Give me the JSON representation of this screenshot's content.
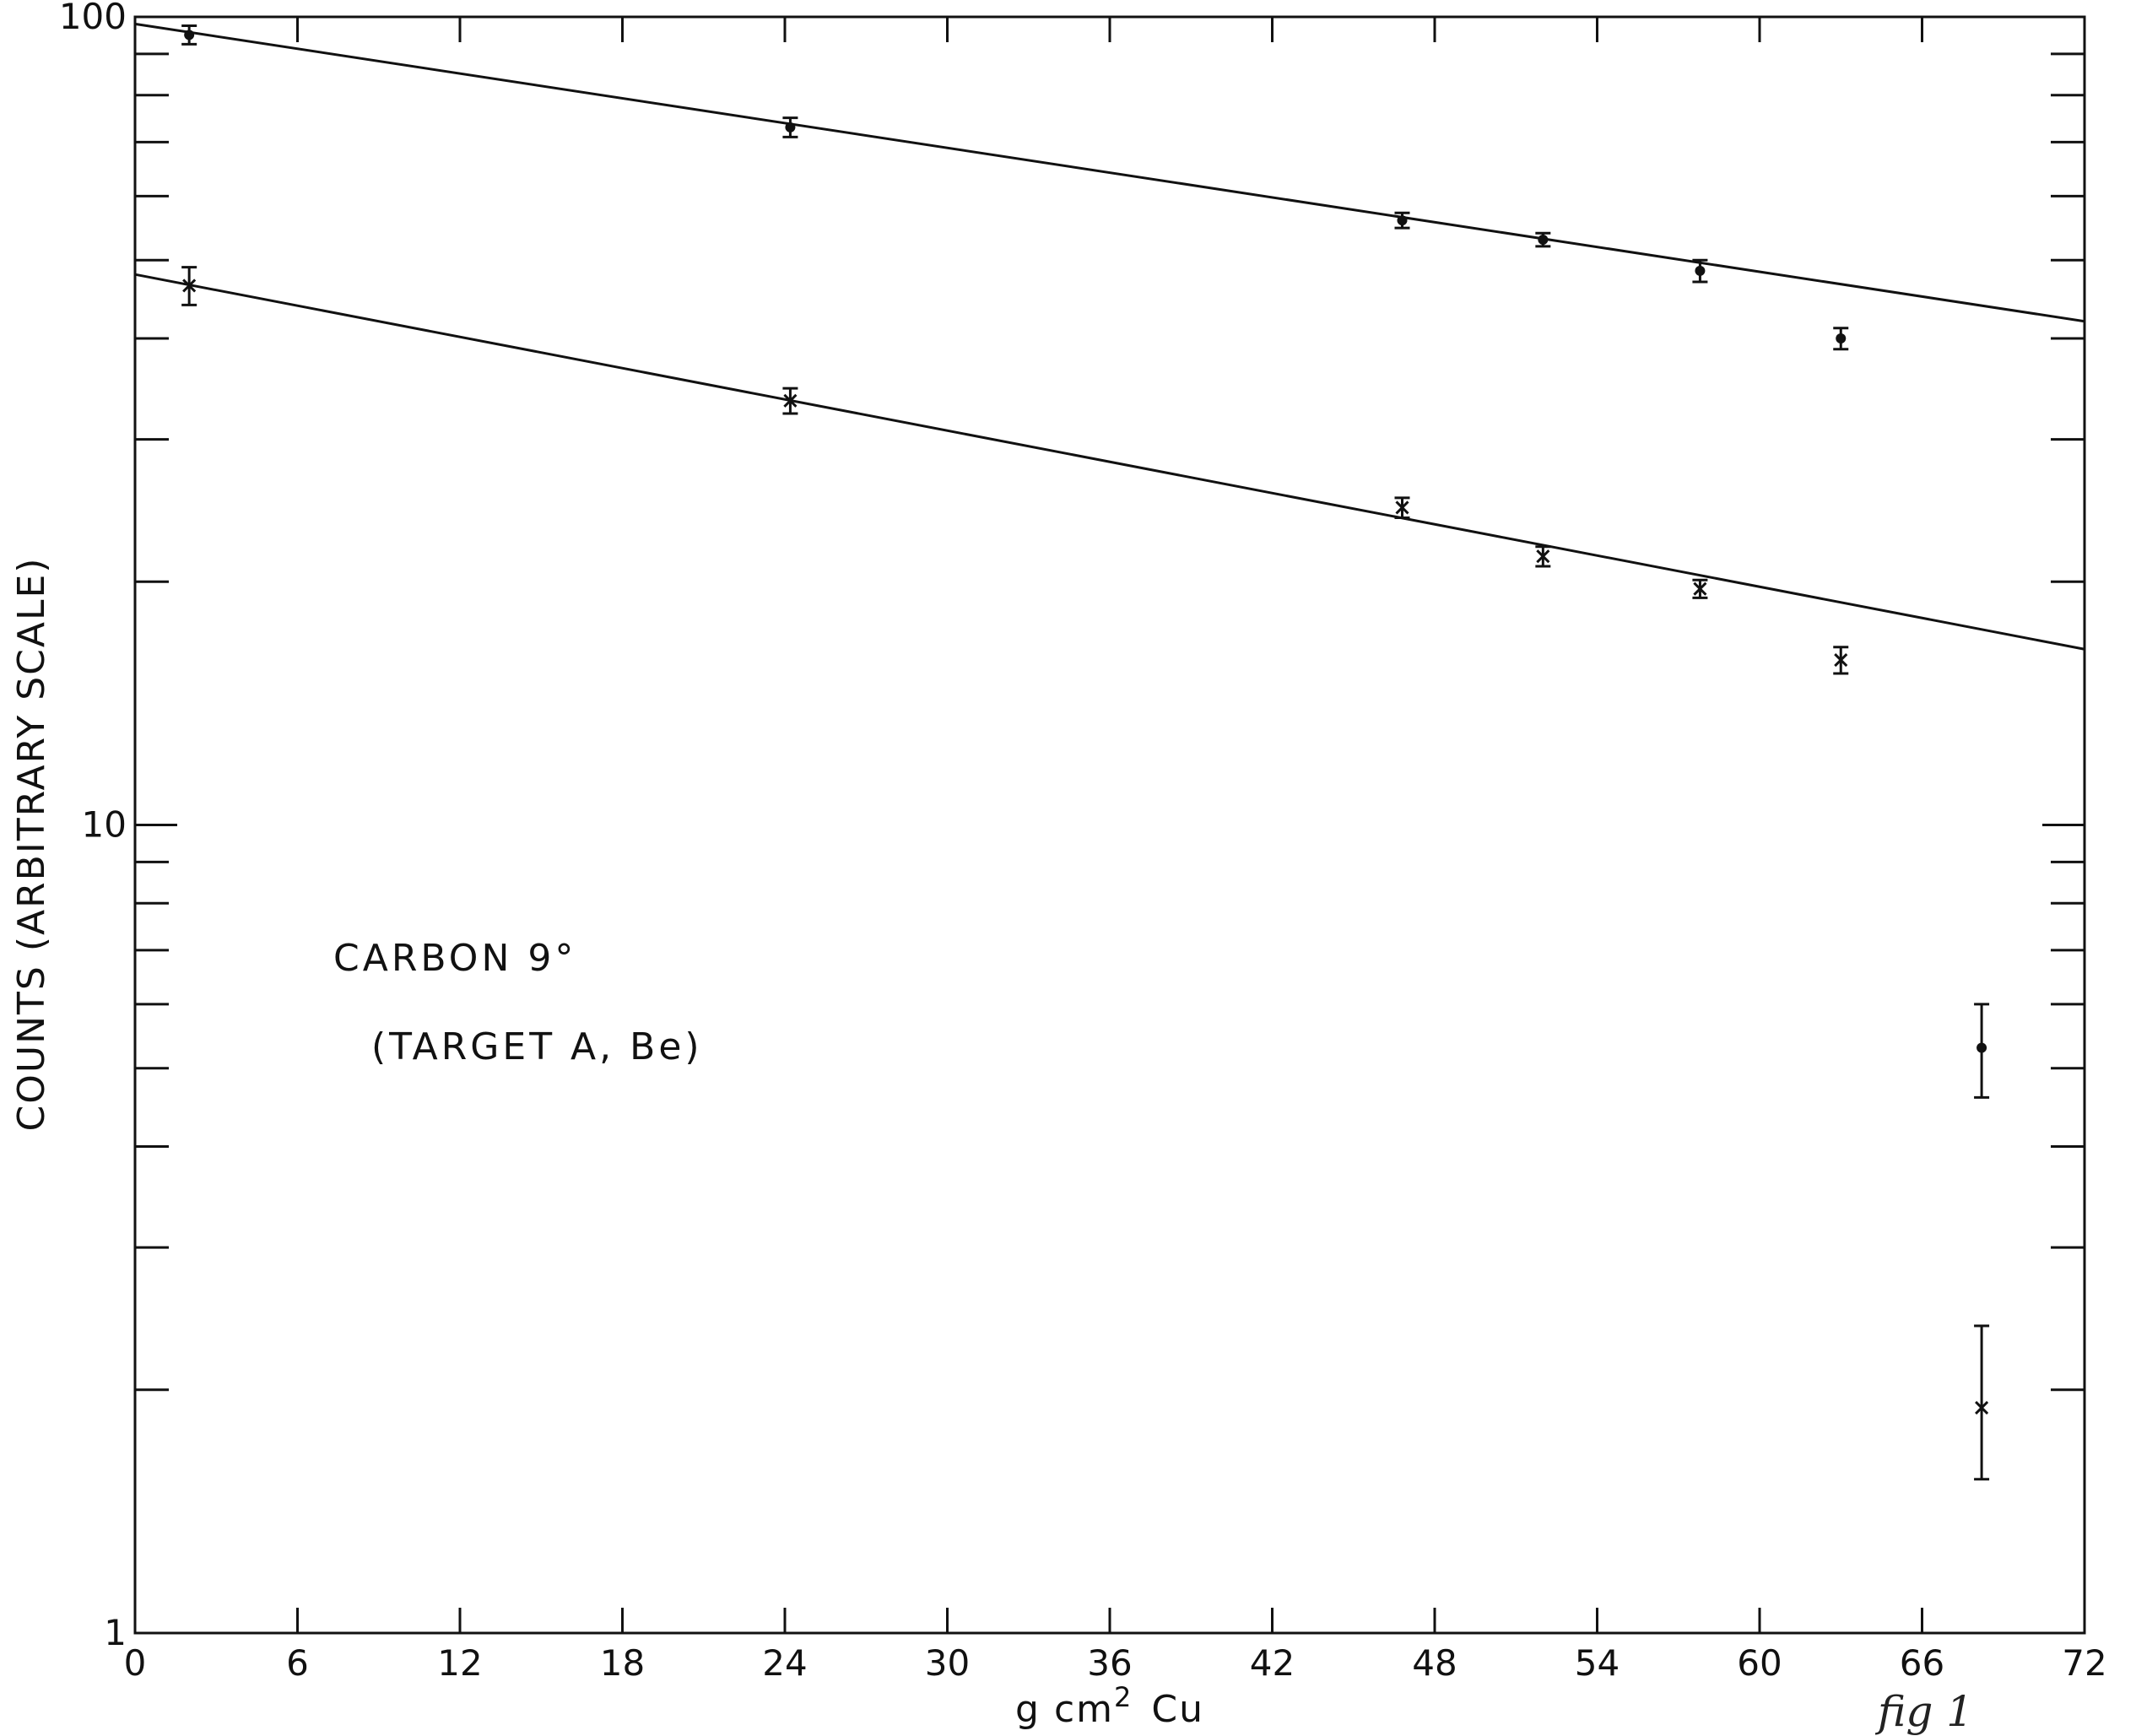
{
  "chart_data": {
    "type": "scatter",
    "xlabel": "g cm",
    "xlabel_sup": "2",
    "xlabel_suffix": "Cu",
    "ylabel": "COUNTS (ARBITRARY SCALE)",
    "xlim": [
      0,
      72
    ],
    "ylim": [
      1,
      100
    ],
    "y_scale": "log",
    "x_ticks": [
      0,
      6,
      12,
      18,
      24,
      30,
      36,
      42,
      48,
      54,
      60,
      66,
      72
    ],
    "y_tick_labels": [
      1,
      10,
      100
    ],
    "grid": false,
    "annotations": [
      "CARBON  9°",
      "(TARGET A, Be)"
    ],
    "signature": "fig 1",
    "series": [
      {
        "marker": "dot",
        "points": [
          {
            "x": 2.0,
            "y": 95,
            "err_low": 92.5,
            "err_high": 97.5
          },
          {
            "x": 24.2,
            "y": 73,
            "err_low": 71,
            "err_high": 75
          },
          {
            "x": 46.8,
            "y": 56,
            "err_low": 54.8,
            "err_high": 57.2
          },
          {
            "x": 52.0,
            "y": 53,
            "err_low": 52,
            "err_high": 54
          },
          {
            "x": 57.8,
            "y": 48.5,
            "err_low": 47,
            "err_high": 50
          },
          {
            "x": 63.0,
            "y": 40,
            "err_low": 38.8,
            "err_high": 41.2
          },
          {
            "x": 68.2,
            "y": 5.3,
            "err_low": 4.6,
            "err_high": 6.0
          }
        ],
        "fit_line": {
          "x": [
            0,
            72
          ],
          "y": [
            98,
            42
          ]
        }
      },
      {
        "marker": "cross",
        "points": [
          {
            "x": 2.0,
            "y": 46.5,
            "err_low": 44,
            "err_high": 49
          },
          {
            "x": 24.2,
            "y": 33.5,
            "err_low": 32.3,
            "err_high": 34.7
          },
          {
            "x": 46.8,
            "y": 24.7,
            "err_low": 24.0,
            "err_high": 25.4
          },
          {
            "x": 52.0,
            "y": 21.5,
            "err_low": 20.9,
            "err_high": 22.1
          },
          {
            "x": 57.8,
            "y": 19.6,
            "err_low": 19.1,
            "err_high": 20.1
          },
          {
            "x": 63.0,
            "y": 16.0,
            "err_low": 15.4,
            "err_high": 16.6
          },
          {
            "x": 68.2,
            "y": 1.9,
            "err_low": 1.55,
            "err_high": 2.4
          }
        ],
        "fit_line": {
          "x": [
            0,
            72
          ],
          "y": [
            48,
            16.5
          ]
        }
      }
    ]
  }
}
